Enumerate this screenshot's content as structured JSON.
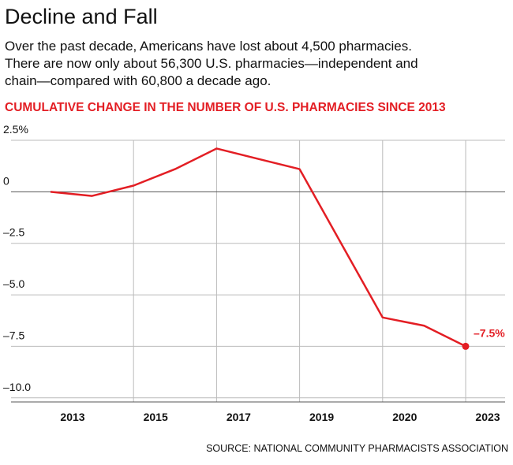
{
  "chart_data": {
    "type": "line",
    "title": "Decline and Fall",
    "subtitle": [
      "Over the past decade, Americans have lost about 4,500 pharmacies.",
      "There are now only about 56,300 U.S. pharmacies—independent and",
      "chain—compared with 60,800 a decade ago."
    ],
    "chart_title": "CUMULATIVE CHANGE IN THE NUMBER OF U.S. PHARMACIES SINCE 2013",
    "source": "SOURCE: NATIONAL COMMUNITY PHARMACISTS ASSOCIATION",
    "categories": [
      "2013",
      null,
      "2015",
      null,
      "2017",
      null,
      "2019",
      null,
      "2020",
      null,
      "2023"
    ],
    "series": [
      {
        "color": "#e31e24",
        "values": [
          0,
          -0.2,
          0.3,
          1.1,
          2.1,
          1.6,
          1.1,
          -2.5,
          -6.1,
          -6.5,
          -7.5
        ],
        "value_labels": [
          null,
          null,
          null,
          null,
          null,
          null,
          null,
          null,
          null,
          null,
          "–7.5%"
        ]
      }
    ],
    "ylim": [
      -10.2,
      2.5
    ],
    "yticks": [
      {
        "value": 2.5,
        "label": "2.5%"
      },
      0,
      {
        "value": -2.5,
        "label": "–2.5"
      },
      {
        "value": -5,
        "label": "–5.0"
      },
      {
        "value": -7.5,
        "label": "–7.5"
      },
      {
        "value": -10,
        "label": "–10.0"
      }
    ],
    "grid": true
  }
}
